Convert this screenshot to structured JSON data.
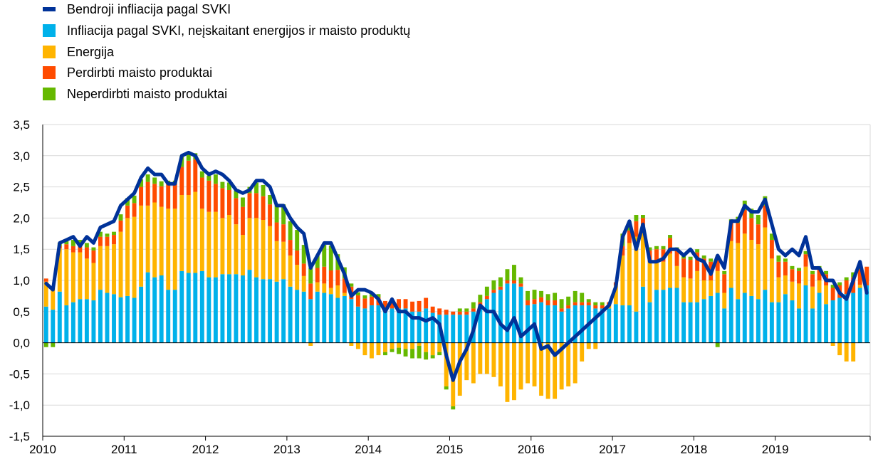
{
  "chart_data": {
    "type": "bar",
    "stacked": true,
    "grid": "horizontal",
    "legend_position": "top-left",
    "ylim": [
      -1.5,
      3.5
    ],
    "yticks": [
      -1.5,
      -1.0,
      -0.5,
      0.0,
      0.5,
      1.0,
      1.5,
      2.0,
      2.5,
      3.0,
      3.5
    ],
    "ytick_labels": [
      "-1,5",
      "-1,0",
      "-0,5",
      "0,0",
      "0,5",
      "1,0",
      "1,5",
      "2,0",
      "2,5",
      "3,0",
      "3,5"
    ],
    "xtick_labels": [
      "2010",
      "2011",
      "2012",
      "2013",
      "2014",
      "2015",
      "2016",
      "2017",
      "2018",
      "2019"
    ],
    "x_start": "2010-01",
    "x_end": "2019-12",
    "series": [
      {
        "name": "Bendroji infliacija pagal SVKI",
        "kind": "line",
        "color": "#003299",
        "values": [
          0.95,
          0.85,
          1.6,
          1.65,
          1.7,
          1.55,
          1.7,
          1.6,
          1.85,
          1.9,
          1.95,
          2.2,
          2.3,
          2.4,
          2.65,
          2.8,
          2.7,
          2.7,
          2.55,
          2.55,
          3.0,
          3.05,
          3.0,
          2.8,
          2.7,
          2.75,
          2.7,
          2.6,
          2.45,
          2.4,
          2.45,
          2.6,
          2.6,
          2.5,
          2.2,
          2.2,
          2.0,
          1.85,
          1.75,
          1.2,
          1.4,
          1.6,
          1.6,
          1.35,
          1.1,
          0.75,
          0.85,
          0.85,
          0.8,
          0.7,
          0.5,
          0.7,
          0.5,
          0.5,
          0.4,
          0.4,
          0.35,
          0.4,
          0.3,
          -0.2,
          -0.6,
          -0.3,
          -0.1,
          0.2,
          0.6,
          0.5,
          0.5,
          0.3,
          0.2,
          0.4,
          0.1,
          0.2,
          0.3,
          -0.1,
          -0.05,
          -0.2,
          -0.1,
          0.0,
          0.1,
          0.2,
          0.3,
          0.4,
          0.5,
          0.6,
          0.9,
          1.7,
          1.95,
          1.5,
          1.9,
          1.3,
          1.3,
          1.35,
          1.5,
          1.5,
          1.4,
          1.5,
          1.35,
          1.3,
          1.1,
          1.4,
          1.2,
          1.95,
          1.95,
          2.2,
          2.1,
          2.1,
          2.3,
          1.9,
          1.5,
          1.4,
          1.5,
          1.4,
          1.7,
          1.2,
          1.2,
          1.0,
          1.0,
          0.8,
          0.7,
          1.0,
          1.3,
          0.8
        ]
      },
      {
        "name": "Infliacija pagal SVKI, neįskaitant energijos ir maisto produktų",
        "kind": "bar",
        "color": "#00B1EA",
        "values": [
          0.58,
          0.53,
          0.82,
          0.6,
          0.65,
          0.7,
          0.7,
          0.68,
          0.85,
          0.8,
          0.78,
          0.73,
          0.75,
          0.72,
          0.9,
          1.13,
          1.05,
          1.08,
          0.85,
          0.85,
          1.15,
          1.12,
          1.12,
          1.15,
          1.05,
          1.05,
          1.1,
          1.1,
          1.1,
          1.08,
          1.17,
          1.05,
          1.02,
          1.02,
          0.98,
          1.02,
          0.9,
          0.85,
          0.82,
          0.7,
          0.82,
          0.8,
          0.78,
          0.72,
          0.75,
          0.7,
          0.58,
          0.55,
          0.6,
          0.6,
          0.55,
          0.55,
          0.55,
          0.55,
          0.5,
          0.5,
          0.55,
          0.48,
          0.45,
          0.45,
          0.45,
          0.45,
          0.45,
          0.5,
          0.6,
          0.7,
          0.8,
          0.85,
          0.95,
          0.95,
          0.9,
          0.6,
          0.62,
          0.65,
          0.6,
          0.6,
          0.5,
          0.55,
          0.6,
          0.6,
          0.6,
          0.55,
          0.55,
          0.55,
          0.62,
          0.6,
          0.6,
          0.5,
          0.9,
          0.65,
          0.85,
          0.85,
          0.88,
          0.88,
          0.65,
          0.65,
          0.65,
          0.7,
          0.75,
          0.8,
          0.55,
          0.88,
          0.7,
          0.8,
          0.75,
          0.7,
          0.85,
          0.65,
          0.65,
          0.78,
          0.68,
          0.55,
          0.92,
          0.55,
          0.8,
          0.62,
          0.68,
          0.72,
          0.78,
          0.8,
          0.88,
          0.92
        ]
      },
      {
        "name": "Energija",
        "kind": "bar",
        "color": "#FFB400",
        "values": [
          0.4,
          0.35,
          0.7,
          0.9,
          0.8,
          0.75,
          0.65,
          0.6,
          0.7,
          0.75,
          0.8,
          1.05,
          1.25,
          1.3,
          1.3,
          1.07,
          1.2,
          1.1,
          1.3,
          1.3,
          1.22,
          1.25,
          1.3,
          1.0,
          1.05,
          1.05,
          0.9,
          0.95,
          0.8,
          0.65,
          0.83,
          0.95,
          0.95,
          0.85,
          0.65,
          0.6,
          0.5,
          0.4,
          0.25,
          -0.05,
          0.15,
          0.15,
          0.1,
          0.2,
          0.05,
          -0.05,
          -0.1,
          -0.2,
          -0.25,
          -0.2,
          -0.15,
          -0.1,
          -0.08,
          -0.1,
          -0.1,
          -0.05,
          -0.15,
          -0.2,
          -0.15,
          -0.7,
          -1.02,
          -0.85,
          -0.6,
          -0.65,
          -0.5,
          -0.5,
          -0.55,
          -0.7,
          -0.95,
          -0.92,
          -0.75,
          -0.65,
          -0.7,
          -0.85,
          -0.9,
          -0.9,
          -0.75,
          -0.7,
          -0.65,
          -0.3,
          -0.1,
          -0.1,
          0.0,
          0.05,
          0.3,
          0.8,
          1.0,
          1.2,
          0.9,
          0.65,
          0.45,
          0.45,
          0.55,
          0.35,
          0.4,
          0.38,
          0.5,
          0.3,
          0.25,
          0.35,
          0.25,
          0.75,
          0.9,
          0.95,
          0.9,
          0.88,
          1.0,
          0.7,
          0.4,
          0.3,
          0.3,
          0.4,
          0.3,
          0.35,
          0.2,
          0.3,
          -0.05,
          -0.2,
          -0.3,
          -0.3,
          0.05,
          0.0
        ]
      },
      {
        "name": "Perdirbti maisto produktai",
        "kind": "bar",
        "color": "#FF4B00",
        "values": [
          0.05,
          0.0,
          0.03,
          0.08,
          0.1,
          0.15,
          0.18,
          0.2,
          0.15,
          0.15,
          0.15,
          0.18,
          0.2,
          0.22,
          0.3,
          0.38,
          0.3,
          0.33,
          0.4,
          0.4,
          0.45,
          0.55,
          0.52,
          0.5,
          0.5,
          0.45,
          0.48,
          0.4,
          0.42,
          0.45,
          0.4,
          0.4,
          0.38,
          0.35,
          0.3,
          0.28,
          0.25,
          0.23,
          0.2,
          0.25,
          0.23,
          0.27,
          0.28,
          0.25,
          0.23,
          0.2,
          0.18,
          0.16,
          0.14,
          0.13,
          0.12,
          0.14,
          0.15,
          0.15,
          0.16,
          0.17,
          0.17,
          0.1,
          0.1,
          0.08,
          0.05,
          0.05,
          0.05,
          0.05,
          0.05,
          0.05,
          0.05,
          0.05,
          0.05,
          0.05,
          0.05,
          0.08,
          0.08,
          0.08,
          0.08,
          0.08,
          0.05,
          0.05,
          0.05,
          0.05,
          0.05,
          0.05,
          0.05,
          0.05,
          0.05,
          0.15,
          0.2,
          0.25,
          0.2,
          0.18,
          0.2,
          0.2,
          0.25,
          0.25,
          0.3,
          0.3,
          0.3,
          0.35,
          0.3,
          0.25,
          0.3,
          0.3,
          0.32,
          0.38,
          0.35,
          0.32,
          0.35,
          0.3,
          0.25,
          0.22,
          0.2,
          0.2,
          0.2,
          0.2,
          0.18,
          0.18,
          0.2,
          0.2,
          0.22,
          0.25,
          0.25,
          0.3
        ]
      },
      {
        "name": "Neperdirbti maisto produktai",
        "kind": "bar",
        "color": "#65B800",
        "values": [
          -0.07,
          -0.07,
          0.05,
          0.07,
          0.1,
          0.05,
          0.07,
          0.05,
          0.08,
          0.05,
          0.05,
          0.1,
          0.12,
          0.12,
          0.12,
          0.12,
          0.1,
          0.08,
          0.05,
          0.05,
          0.18,
          0.1,
          0.1,
          0.1,
          0.08,
          0.15,
          0.1,
          0.12,
          0.12,
          0.15,
          0.1,
          0.17,
          0.18,
          0.15,
          0.28,
          0.32,
          0.3,
          0.33,
          0.3,
          0.25,
          0.2,
          0.35,
          0.4,
          0.25,
          0.18,
          0.05,
          0.05,
          0.05,
          0.05,
          0.05,
          -0.05,
          -0.05,
          -0.1,
          -0.12,
          -0.15,
          -0.2,
          -0.12,
          -0.05,
          -0.05,
          -0.05,
          -0.05,
          0.05,
          0.05,
          0.1,
          0.12,
          0.15,
          0.15,
          0.15,
          0.18,
          0.25,
          0.1,
          0.15,
          0.15,
          0.1,
          0.1,
          0.12,
          0.15,
          0.14,
          0.18,
          0.15,
          0.05,
          0.05,
          0.05,
          0.0,
          0.0,
          0.2,
          0.15,
          0.1,
          0.05,
          0.05,
          0.05,
          0.05,
          0.05,
          0.05,
          0.05,
          0.05,
          0.05,
          0.05,
          0.05,
          -0.07,
          0.05,
          0.05,
          0.1,
          0.15,
          0.15,
          0.15,
          0.15,
          0.1,
          0.1,
          0.05,
          0.05,
          0.05,
          0.05,
          0.05,
          0.05,
          0.05,
          0.05,
          0.05,
          0.05,
          0.08,
          0.05
        ]
      }
    ]
  }
}
